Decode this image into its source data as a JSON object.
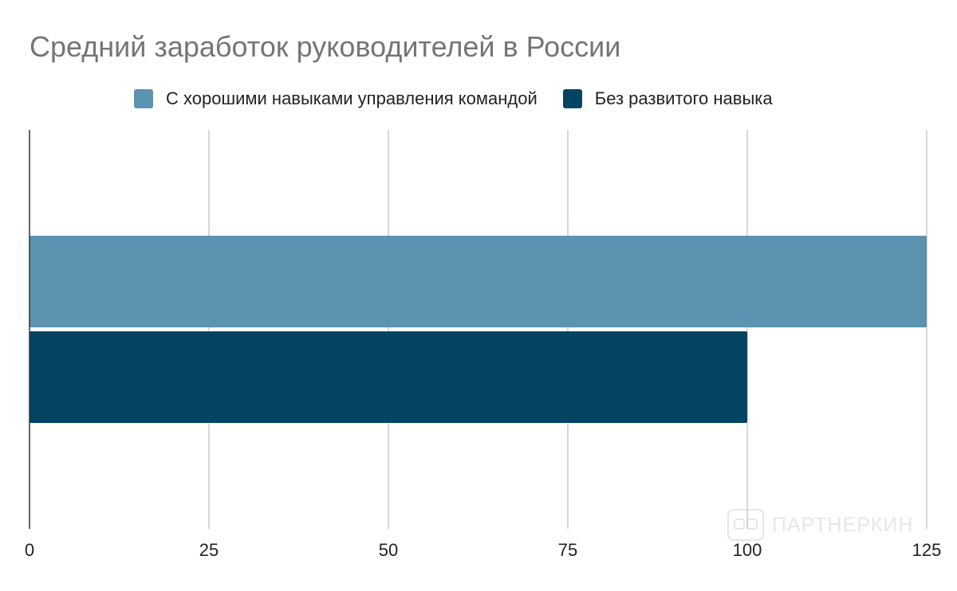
{
  "chart_data": {
    "type": "bar",
    "orientation": "horizontal",
    "title": "Средний заработок руководителей в России",
    "xlabel": "",
    "ylabel": "",
    "xlim": [
      0,
      125
    ],
    "ticks": [
      "0",
      "25",
      "50",
      "75",
      "100",
      "125"
    ],
    "tick_values": [
      0,
      25,
      50,
      75,
      100,
      125
    ],
    "grid": true,
    "legend_position": "top",
    "series": [
      {
        "name": "С хорошими навыками управления командой",
        "values": [
          125
        ],
        "color": "#5b93b0"
      },
      {
        "name": "Без развитого навыка",
        "values": [
          100
        ],
        "color": "#024461"
      }
    ]
  },
  "watermark": {
    "text": "ПАРТНЕРКИН",
    "icon": "partnerkin-logo-icon"
  }
}
